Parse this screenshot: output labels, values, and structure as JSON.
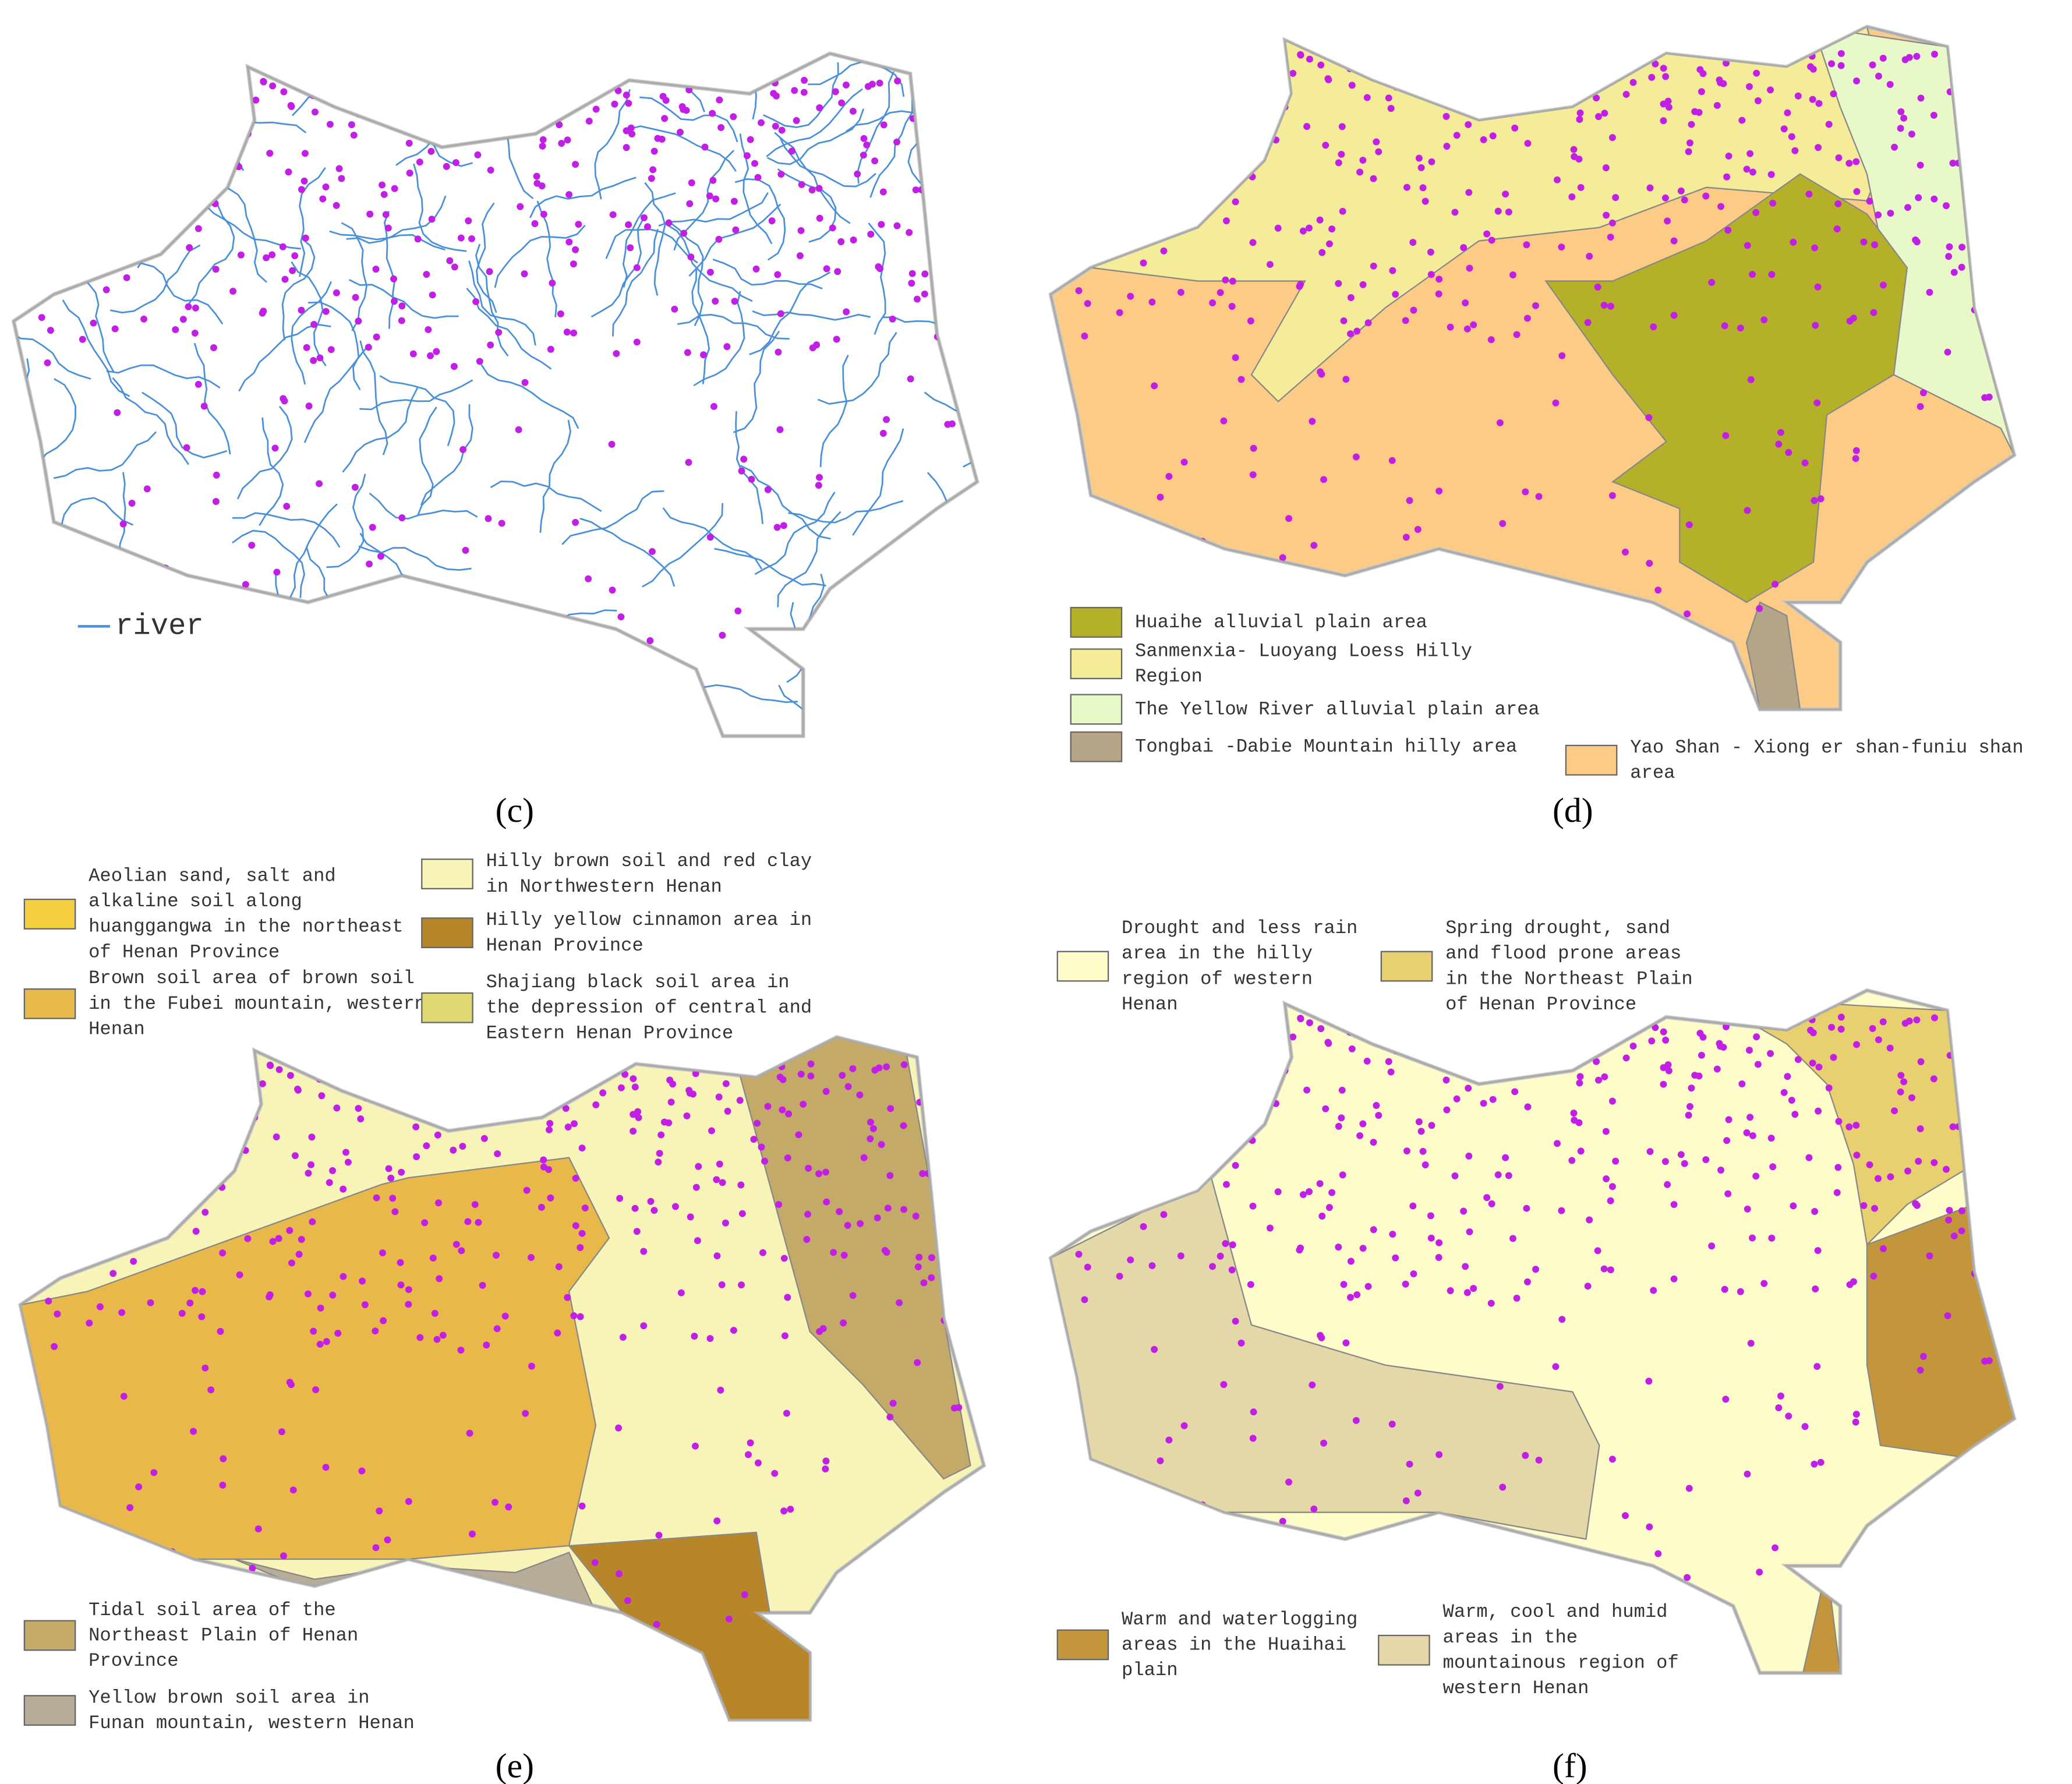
{
  "panels": [
    {
      "label": "(c)",
      "legend": [
        {
          "lines": [
            "river"
          ],
          "color": "#4a90d9"
        }
      ]
    },
    {
      "label": "(d)",
      "legend": [
        {
          "lines": [
            "Huaihe alluvial plain area"
          ],
          "color": "#b5b02a"
        },
        {
          "lines": [
            "Sanmenxia- Luoyang Loess Hilly",
            "Region"
          ],
          "color": "#f5ec9a"
        },
        {
          "lines": [
            "The Yellow River alluvial plain area"
          ],
          "color": "#e8f8c8"
        },
        {
          "lines": [
            "Tongbai -Dabie Mountain hilly area"
          ],
          "color": "#b5a588"
        },
        {
          "lines": [
            "Yao Shan  -  Xiong er shan-funiu shan",
            "area"
          ],
          "color": "#fccb85"
        }
      ]
    },
    {
      "label": "(e)",
      "legend": [
        {
          "lines": [
            "Aeolian sand, salt and",
            "alkaline soil along",
            "huanggangwa in the northeast",
            "of Henan Province"
          ],
          "color": "#f5d040"
        },
        {
          "lines": [
            "Brown soil area of brown soil",
            "in the Fubei mountain, western",
            "Henan"
          ],
          "color": "#e8b84a"
        },
        {
          "lines": [
            "Hilly brown soil and red clay",
            "in Northwestern Henan"
          ],
          "color": "#f8f4b8"
        },
        {
          "lines": [
            "Hilly yellow cinnamon area in",
            "Henan Province"
          ],
          "color": "#b8862a"
        },
        {
          "lines": [
            "Shajiang black soil area in",
            "the depression of central and",
            "Eastern Henan Province"
          ],
          "color": "#e0d870"
        },
        {
          "lines": [
            "Tidal soil area of the",
            "Northeast Plain of Henan",
            "Province"
          ],
          "color": "#c4aa68"
        },
        {
          "lines": [
            "Yellow brown soil area in",
            "Funan mountain, western Henan"
          ],
          "color": "#b8ad98"
        }
      ]
    },
    {
      "label": "(f)",
      "legend": [
        {
          "lines": [
            "Drought and less rain",
            "area in the hilly",
            "region of western",
            "Henan"
          ],
          "color": "#fefcc8"
        },
        {
          "lines": [
            "Spring drought, sand",
            "and flood prone areas",
            "in the Northeast Plain",
            "of Henan Province"
          ],
          "color": "#e8d070"
        },
        {
          "lines": [
            "Warm and waterlogging",
            "areas in the Huaihai",
            "plain"
          ],
          "color": "#c4963c"
        },
        {
          "lines": [
            "Warm, cool and humid",
            "areas in the",
            "mountainous region of",
            "western Henan"
          ],
          "color": "#e4d8a8"
        }
      ]
    }
  ]
}
